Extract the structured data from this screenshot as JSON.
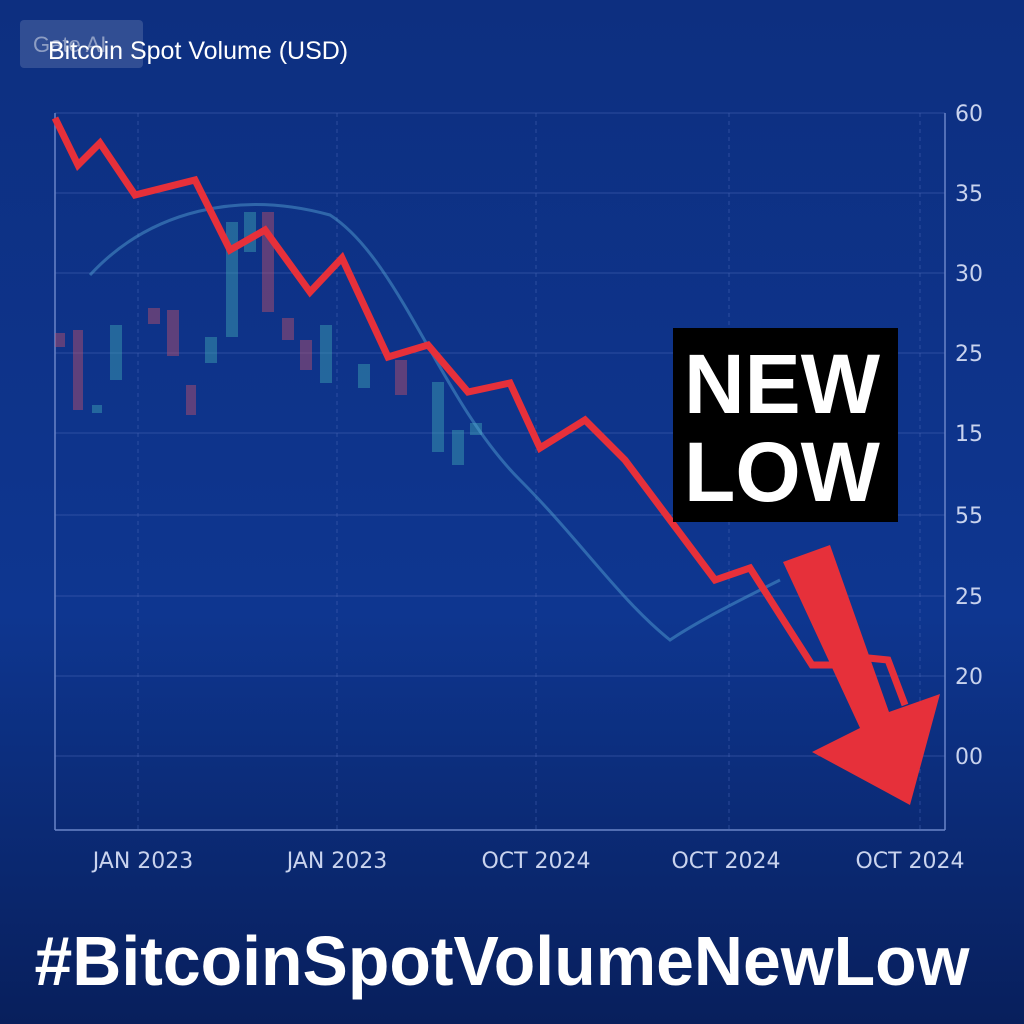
{
  "watermark": "Gate AI",
  "title": "Bitcoin Spot Volume (USD)",
  "y_axis_labels": [
    "60",
    "35",
    "30",
    "25",
    "15",
    "55",
    "25",
    "20",
    "00"
  ],
  "x_axis_labels": [
    "JAN 2023",
    "JAN 2023",
    "OCT 2024",
    "OCT 2024",
    "OCT 2024"
  ],
  "badge": {
    "lines": [
      "NEW",
      "LOW"
    ]
  },
  "hashtag": "#BitcoinSpotVolumeNewLow"
}
